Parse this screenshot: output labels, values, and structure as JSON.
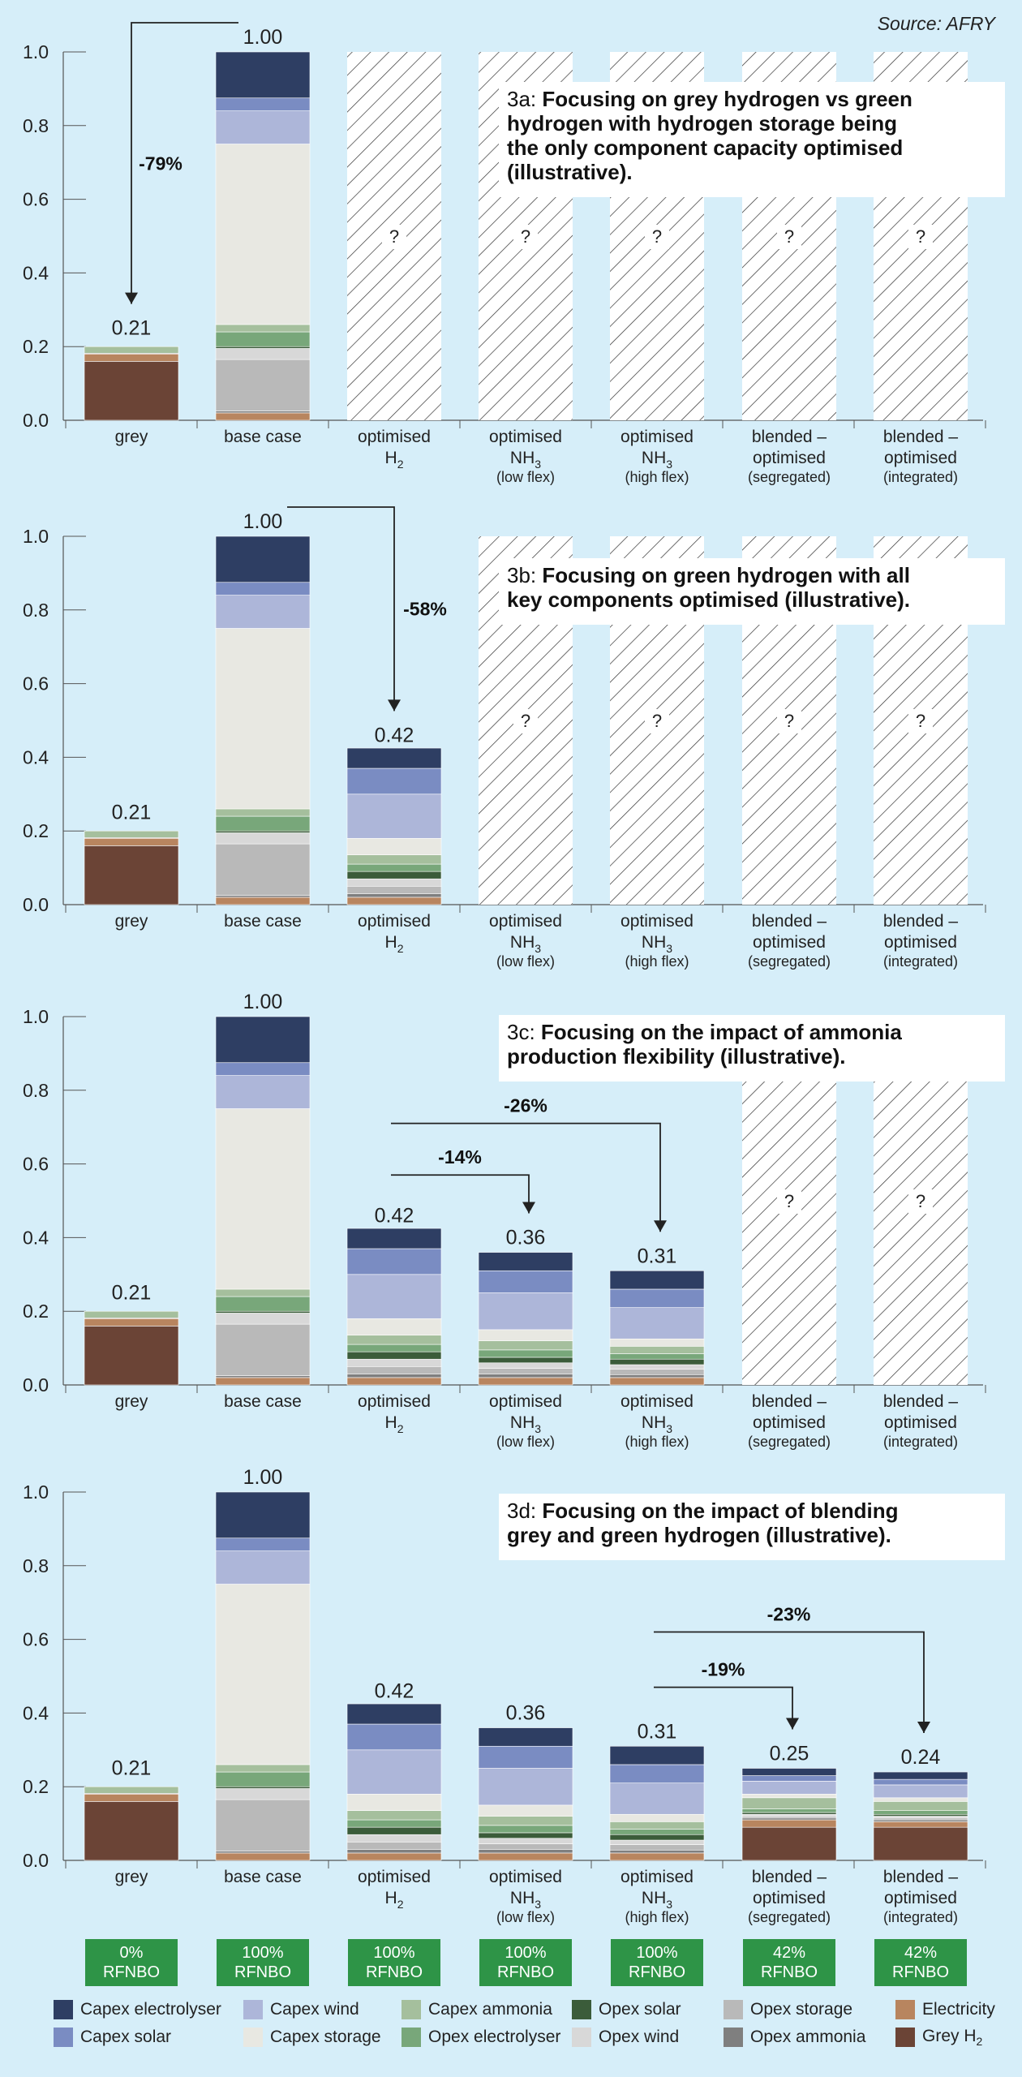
{
  "source": "Source: AFRY",
  "categories": [
    {
      "main": "grey",
      "sub": "",
      "subsub": ""
    },
    {
      "main": "base case",
      "sub": "",
      "subsub": ""
    },
    {
      "main": "optimised",
      "sub": "H",
      "subsub": "2"
    },
    {
      "main": "optimised",
      "sub": "NH",
      "subsub": "3",
      "extra": "(low flex)"
    },
    {
      "main": "optimised",
      "sub": "NH",
      "subsub": "3",
      "extra": "(high flex)"
    },
    {
      "main": "blended –",
      "sub": "optimised",
      "subsub": "",
      "extra": "(segregated)"
    },
    {
      "main": "blended –",
      "sub": "optimised",
      "subsub": "",
      "extra": "(integrated)"
    }
  ],
  "components": [
    {
      "name": "Capex electrolyser",
      "color": "#2e3e63"
    },
    {
      "name": "Capex solar",
      "color": "#7a8cc2"
    },
    {
      "name": "Capex wind",
      "color": "#adb6d9"
    },
    {
      "name": "Capex storage",
      "color": "#e8e8e2"
    },
    {
      "name": "Capex ammonia",
      "color": "#a5bf9d"
    },
    {
      "name": "Opex electrolyser",
      "color": "#78a77a"
    },
    {
      "name": "Opex solar",
      "color": "#3b5c3a"
    },
    {
      "name": "Opex wind",
      "color": "#d8d8d8"
    },
    {
      "name": "Opex storage",
      "color": "#b9b9b9"
    },
    {
      "name": "Opex ammonia",
      "color": "#7f7f7f"
    },
    {
      "name": "Electricity",
      "color": "#b8855f"
    },
    {
      "name": "Grey H2",
      "label": "Grey H",
      "labelSub": "2",
      "color": "#6b4436"
    }
  ],
  "rfnbo": [
    "0%\nRFNBO",
    "100%\nRFNBO",
    "100%\nRFNBO",
    "100%\nRFNBO",
    "100%\nRFNBO",
    "42%\nRFNBO",
    "42%\nRFNBO"
  ],
  "chart_data": [
    {
      "type": "bar",
      "id": "3a",
      "ylim": [
        0,
        1.0
      ],
      "yticks": [
        "0.0",
        "0.2",
        "0.4",
        "0.6",
        "0.8",
        "1.0"
      ],
      "title_prefix": "3a: ",
      "title": "Focusing on grey hydrogen vs green hydrogen with hydrogen storage being the only component capacity optimised (illustrative).",
      "title_lines": [
        "Focusing on grey hydrogen vs green",
        "hydrogen with hydrogen storage being",
        "the only component capacity optimised",
        "(illustrative)."
      ],
      "totals": [
        0.21,
        1.0,
        null,
        null,
        null,
        null,
        null
      ],
      "total_labels": [
        "0.21",
        "1.00",
        "",
        "",
        "",
        "",
        ""
      ],
      "hatched": [
        false,
        false,
        true,
        true,
        true,
        true,
        true
      ],
      "unknown_label": "?",
      "stacks": [
        {
          "Grey H2": 0.16,
          "Electricity": 0.02,
          "Opex ammonia": 0.002,
          "Capex ammonia": 0.018
        },
        {
          "Electricity": 0.02,
          "Opex ammonia": 0.005,
          "Opex storage": 0.14,
          "Opex wind": 0.03,
          "Opex solar": 0.005,
          "Opex electrolyser": 0.04,
          "Capex ammonia": 0.02,
          "Capex storage": 0.49,
          "Capex wind": 0.09,
          "Capex solar": 0.035,
          "Capex electrolyser": 0.125
        },
        {},
        {},
        {},
        {},
        {}
      ],
      "arrows": [
        {
          "from": 1,
          "to": 0,
          "label": "-79%"
        }
      ]
    },
    {
      "type": "bar",
      "id": "3b",
      "ylim": [
        0,
        1.0
      ],
      "yticks": [
        "0.0",
        "0.2",
        "0.4",
        "0.6",
        "0.8",
        "1.0"
      ],
      "title_prefix": "3b: ",
      "title": "Focusing on green hydrogen with all key components optimised (illustrative).",
      "title_lines": [
        "Focusing on green hydrogen with all",
        "key components optimised (illustrative)."
      ],
      "totals": [
        0.21,
        1.0,
        0.42,
        null,
        null,
        null,
        null
      ],
      "total_labels": [
        "0.21",
        "1.00",
        "0.42",
        "",
        "",
        "",
        ""
      ],
      "hatched": [
        false,
        false,
        false,
        true,
        true,
        true,
        true
      ],
      "unknown_label": "?",
      "stacks": [
        {
          "Grey H2": 0.16,
          "Electricity": 0.02,
          "Opex ammonia": 0.002,
          "Capex ammonia": 0.018
        },
        {
          "Electricity": 0.02,
          "Opex ammonia": 0.005,
          "Opex storage": 0.14,
          "Opex wind": 0.03,
          "Opex solar": 0.005,
          "Opex electrolyser": 0.04,
          "Capex ammonia": 0.02,
          "Capex storage": 0.49,
          "Capex wind": 0.09,
          "Capex solar": 0.035,
          "Capex electrolyser": 0.125
        },
        {
          "Electricity": 0.02,
          "Opex ammonia": 0.01,
          "Opex storage": 0.02,
          "Opex wind": 0.02,
          "Opex solar": 0.02,
          "Opex electrolyser": 0.02,
          "Capex ammonia": 0.025,
          "Capex storage": 0.045,
          "Capex wind": 0.12,
          "Capex solar": 0.07,
          "Capex electrolyser": 0.055
        },
        {},
        {},
        {},
        {}
      ],
      "arrows": [
        {
          "from": 1,
          "to": 2,
          "label": "-58%"
        }
      ]
    },
    {
      "type": "bar",
      "id": "3c",
      "ylim": [
        0,
        1.0
      ],
      "yticks": [
        "0.0",
        "0.2",
        "0.4",
        "0.6",
        "0.8",
        "1.0"
      ],
      "title_prefix": "3c: ",
      "title": "Focusing on the impact of ammonia production flexibility (illustrative).",
      "title_lines": [
        "Focusing on the impact of ammonia",
        "production flexibility (illustrative)."
      ],
      "totals": [
        0.21,
        1.0,
        0.42,
        0.36,
        0.31,
        null,
        null
      ],
      "total_labels": [
        "0.21",
        "1.00",
        "0.42",
        "0.36",
        "0.31",
        "",
        ""
      ],
      "hatched": [
        false,
        false,
        false,
        false,
        false,
        true,
        true
      ],
      "unknown_label": "?",
      "stacks": [
        {
          "Grey H2": 0.16,
          "Electricity": 0.02,
          "Opex ammonia": 0.002,
          "Capex ammonia": 0.018
        },
        {
          "Electricity": 0.02,
          "Opex ammonia": 0.005,
          "Opex storage": 0.14,
          "Opex wind": 0.03,
          "Opex solar": 0.005,
          "Opex electrolyser": 0.04,
          "Capex ammonia": 0.02,
          "Capex storage": 0.49,
          "Capex wind": 0.09,
          "Capex solar": 0.035,
          "Capex electrolyser": 0.125
        },
        {
          "Electricity": 0.02,
          "Opex ammonia": 0.01,
          "Opex storage": 0.02,
          "Opex wind": 0.02,
          "Opex solar": 0.02,
          "Opex electrolyser": 0.02,
          "Capex ammonia": 0.025,
          "Capex storage": 0.045,
          "Capex wind": 0.12,
          "Capex solar": 0.07,
          "Capex electrolyser": 0.055
        },
        {
          "Electricity": 0.02,
          "Opex ammonia": 0.01,
          "Opex storage": 0.015,
          "Opex wind": 0.015,
          "Opex solar": 0.015,
          "Opex electrolyser": 0.02,
          "Capex ammonia": 0.025,
          "Capex storage": 0.03,
          "Capex wind": 0.1,
          "Capex solar": 0.06,
          "Capex electrolyser": 0.05
        },
        {
          "Electricity": 0.02,
          "Opex ammonia": 0.008,
          "Opex storage": 0.015,
          "Opex wind": 0.012,
          "Opex solar": 0.015,
          "Opex electrolyser": 0.015,
          "Capex ammonia": 0.02,
          "Capex storage": 0.02,
          "Capex wind": 0.085,
          "Capex solar": 0.05,
          "Capex electrolyser": 0.05
        },
        {},
        {}
      ],
      "arrows": [
        {
          "from": 2,
          "to": 3,
          "label": "-14%"
        },
        {
          "from": 2,
          "to": 4,
          "label": "-26%"
        }
      ]
    },
    {
      "type": "bar",
      "id": "3d",
      "ylim": [
        0,
        1.0
      ],
      "yticks": [
        "0.0",
        "0.2",
        "0.4",
        "0.6",
        "0.8",
        "1.0"
      ],
      "title_prefix": "3d: ",
      "title": "Focusing on the impact of blending grey and green hydrogen (illustrative).",
      "title_lines": [
        "Focusing on the impact of blending",
        "grey and green hydrogen (illustrative)."
      ],
      "totals": [
        0.21,
        1.0,
        0.42,
        0.36,
        0.31,
        0.25,
        0.24
      ],
      "total_labels": [
        "0.21",
        "1.00",
        "0.42",
        "0.36",
        "0.31",
        "0.25",
        "0.24"
      ],
      "hatched": [
        false,
        false,
        false,
        false,
        false,
        false,
        false
      ],
      "unknown_label": "?",
      "stacks": [
        {
          "Grey H2": 0.16,
          "Electricity": 0.02,
          "Opex ammonia": 0.002,
          "Capex ammonia": 0.018
        },
        {
          "Electricity": 0.02,
          "Opex ammonia": 0.005,
          "Opex storage": 0.14,
          "Opex wind": 0.03,
          "Opex solar": 0.005,
          "Opex electrolyser": 0.04,
          "Capex ammonia": 0.02,
          "Capex storage": 0.49,
          "Capex wind": 0.09,
          "Capex solar": 0.035,
          "Capex electrolyser": 0.125
        },
        {
          "Electricity": 0.02,
          "Opex ammonia": 0.01,
          "Opex storage": 0.02,
          "Opex wind": 0.02,
          "Opex solar": 0.02,
          "Opex electrolyser": 0.02,
          "Capex ammonia": 0.025,
          "Capex storage": 0.045,
          "Capex wind": 0.12,
          "Capex solar": 0.07,
          "Capex electrolyser": 0.055
        },
        {
          "Electricity": 0.02,
          "Opex ammonia": 0.01,
          "Opex storage": 0.015,
          "Opex wind": 0.015,
          "Opex solar": 0.015,
          "Opex electrolyser": 0.02,
          "Capex ammonia": 0.025,
          "Capex storage": 0.03,
          "Capex wind": 0.1,
          "Capex solar": 0.06,
          "Capex electrolyser": 0.05
        },
        {
          "Electricity": 0.02,
          "Opex ammonia": 0.008,
          "Opex storage": 0.015,
          "Opex wind": 0.012,
          "Opex solar": 0.015,
          "Opex electrolyser": 0.015,
          "Capex ammonia": 0.02,
          "Capex storage": 0.02,
          "Capex wind": 0.085,
          "Capex solar": 0.05,
          "Capex electrolyser": 0.05
        },
        {
          "Grey H2": 0.09,
          "Electricity": 0.02,
          "Opex ammonia": 0.005,
          "Opex storage": 0.005,
          "Opex wind": 0.005,
          "Opex solar": 0.005,
          "Opex electrolyser": 0.01,
          "Capex ammonia": 0.03,
          "Capex storage": 0.01,
          "Capex wind": 0.035,
          "Capex solar": 0.015,
          "Capex electrolyser": 0.02
        },
        {
          "Grey H2": 0.09,
          "Electricity": 0.015,
          "Opex ammonia": 0.005,
          "Opex storage": 0.005,
          "Opex wind": 0.005,
          "Opex solar": 0.005,
          "Opex electrolyser": 0.01,
          "Capex ammonia": 0.025,
          "Capex storage": 0.01,
          "Capex wind": 0.035,
          "Capex solar": 0.015,
          "Capex electrolyser": 0.02
        }
      ],
      "arrows": [
        {
          "from": 4,
          "to": 5,
          "label": "-19%"
        },
        {
          "from": 4,
          "to": 6,
          "label": "-23%"
        }
      ]
    }
  ]
}
